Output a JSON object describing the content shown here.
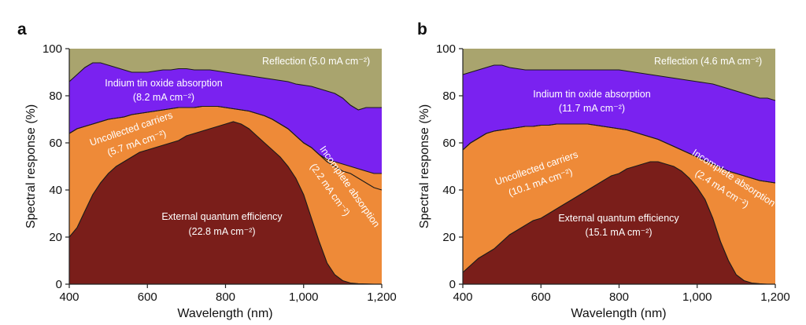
{
  "chart_data": [
    {
      "panel": "a",
      "type": "area",
      "xlabel": "Wavelength (nm)",
      "ylabel": "Spectral response (%)",
      "xlim": [
        400,
        1200
      ],
      "ylim": [
        0,
        100
      ],
      "xticks": [
        "400",
        "600",
        "800",
        "1,000",
        "1,200"
      ],
      "yticks": [
        "0",
        "20",
        "40",
        "60",
        "80",
        "100"
      ],
      "x": [
        400,
        420,
        440,
        460,
        480,
        500,
        520,
        540,
        560,
        580,
        600,
        620,
        640,
        660,
        680,
        700,
        720,
        740,
        760,
        780,
        800,
        820,
        840,
        860,
        880,
        900,
        920,
        940,
        960,
        980,
        1000,
        1020,
        1040,
        1060,
        1080,
        1100,
        1120,
        1140,
        1160,
        1180,
        1200
      ],
      "series": [
        {
          "name": "External quantum efficiency",
          "color": "#7a1e1a",
          "values": [
            20,
            24,
            31,
            38,
            43,
            47,
            50,
            52,
            54,
            56,
            57,
            58,
            59,
            60,
            61,
            63,
            64,
            65,
            66,
            67,
            68,
            69,
            68,
            66,
            63,
            60,
            57,
            54,
            50,
            45,
            38,
            28,
            18,
            9,
            4,
            1.5,
            0.5,
            0.2,
            0.1,
            0,
            0
          ]
        },
        {
          "name": "Uncollected carriers",
          "color": "#ee8a38",
          "values": [
            64,
            66,
            67,
            68,
            69,
            70,
            70.5,
            71,
            72,
            72.5,
            73,
            73.5,
            74,
            74.5,
            75,
            75,
            75,
            75.5,
            75.5,
            75.5,
            75,
            74.5,
            74,
            73.5,
            72.5,
            71.5,
            70,
            68,
            66,
            63,
            60,
            58,
            55,
            52,
            50,
            48,
            47,
            45,
            43,
            41,
            40
          ]
        },
        {
          "name": "Incomplete absorption",
          "color": "#ee8a38",
          "values": [
            64,
            66,
            67,
            68,
            69,
            70,
            70.5,
            71,
            72,
            72.5,
            73,
            73.5,
            74,
            74.5,
            75,
            75,
            75,
            75.5,
            75.5,
            75.5,
            75,
            74.5,
            74,
            73.5,
            72.5,
            71.5,
            70,
            68,
            66,
            63,
            60,
            58,
            55,
            53,
            52,
            51,
            50,
            49,
            48,
            47,
            47
          ]
        },
        {
          "name": "Indium tin oxide absorption",
          "color": "#7a22f0",
          "values": [
            86,
            89,
            92,
            94,
            94,
            93,
            92,
            91,
            90,
            90,
            90,
            90.5,
            91,
            91,
            91.5,
            91.5,
            91,
            91,
            91,
            90.5,
            90,
            89.5,
            89,
            88.5,
            88,
            87.5,
            87,
            86.5,
            86,
            85,
            84.5,
            84,
            83,
            82,
            81,
            79,
            76,
            74,
            75,
            75,
            75
          ]
        },
        {
          "name": "Reflection",
          "color": "#a9a46e",
          "values": [
            100,
            100,
            100,
            100,
            100,
            100,
            100,
            100,
            100,
            100,
            100,
            100,
            100,
            100,
            100,
            100,
            100,
            100,
            100,
            100,
            100,
            100,
            100,
            100,
            100,
            100,
            100,
            100,
            100,
            100,
            100,
            100,
            100,
            100,
            100,
            100,
            100,
            100,
            100,
            100,
            100
          ]
        }
      ],
      "labels": {
        "reflection": "Reflection (5.0 mA cm⁻²)",
        "ito_line1": "Indium tin oxide absorption",
        "ito_line2": "(8.2 mA cm⁻²)",
        "uncollected_line1": "Uncollected carriers",
        "uncollected_line2": "(5.7 mA cm⁻²)",
        "incomplete_line1": "Incomplete absorption",
        "incomplete_line2": "(2.2 mA cm⁻²)",
        "eqe_line1": "External quantum efficiency",
        "eqe_line2": "(22.8 mA cm⁻²)"
      }
    },
    {
      "panel": "b",
      "type": "area",
      "xlabel": "Wavelength (nm)",
      "ylabel": "Spectral response (%)",
      "xlim": [
        400,
        1200
      ],
      "ylim": [
        0,
        100
      ],
      "xticks": [
        "400",
        "600",
        "800",
        "1,000",
        "1,200"
      ],
      "yticks": [
        "0",
        "20",
        "40",
        "60",
        "80",
        "100"
      ],
      "x": [
        400,
        420,
        440,
        460,
        480,
        500,
        520,
        540,
        560,
        580,
        600,
        620,
        640,
        660,
        680,
        700,
        720,
        740,
        760,
        780,
        800,
        820,
        840,
        860,
        880,
        900,
        920,
        940,
        960,
        980,
        1000,
        1020,
        1040,
        1060,
        1080,
        1100,
        1120,
        1140,
        1160,
        1180,
        1200
      ],
      "series": [
        {
          "name": "External quantum efficiency",
          "color": "#7a1e1a",
          "values": [
            5,
            8,
            11,
            13,
            15,
            18,
            21,
            23,
            25,
            27,
            28,
            30,
            32,
            34,
            36,
            38,
            40,
            42,
            44,
            46,
            47,
            49,
            50,
            51,
            52,
            52,
            51,
            50,
            48,
            45,
            41,
            36,
            28,
            18,
            10,
            4,
            1.5,
            0.5,
            0.2,
            0,
            0
          ]
        },
        {
          "name": "Uncollected carriers",
          "color": "#ee8a38",
          "values": [
            57,
            60,
            62,
            64,
            65,
            65.5,
            66,
            66.5,
            67,
            67,
            67.5,
            67.5,
            68,
            68,
            68,
            68,
            68,
            67.5,
            67,
            66.5,
            66,
            65.5,
            64.5,
            63.5,
            62.5,
            61.5,
            60,
            58.5,
            57,
            55.5,
            54,
            52.5,
            51,
            49.5,
            48,
            47,
            46,
            45,
            44,
            43.5,
            43
          ]
        },
        {
          "name": "Incomplete absorption",
          "color": "#ee8a38",
          "values": [
            57,
            60,
            62,
            64,
            65,
            65.5,
            66,
            66.5,
            67,
            67,
            67.5,
            67.5,
            68,
            68,
            68,
            68,
            68,
            67.5,
            67,
            66.5,
            66,
            65.5,
            64.5,
            63.5,
            62.5,
            61.5,
            60,
            58.5,
            57,
            55.5,
            54,
            52.5,
            51,
            49.5,
            48,
            47,
            46,
            45,
            44,
            43.5,
            43
          ]
        },
        {
          "name": "Indium tin oxide absorption",
          "color": "#7a22f0",
          "values": [
            89,
            90,
            91,
            92,
            93,
            93,
            92,
            91.5,
            91,
            91,
            91,
            91,
            91,
            91,
            91,
            91,
            91,
            91,
            91,
            91,
            91,
            90.5,
            90,
            89.5,
            89,
            88.5,
            88,
            87.5,
            87,
            86.5,
            86,
            85.5,
            85,
            84,
            83,
            82,
            81,
            80,
            79,
            79,
            78
          ]
        },
        {
          "name": "Reflection",
          "color": "#a9a46e",
          "values": [
            100,
            100,
            100,
            100,
            100,
            100,
            100,
            100,
            100,
            100,
            100,
            100,
            100,
            100,
            100,
            100,
            100,
            100,
            100,
            100,
            100,
            100,
            100,
            100,
            100,
            100,
            100,
            100,
            100,
            100,
            100,
            100,
            100,
            100,
            100,
            100,
            100,
            100,
            100,
            100,
            100
          ]
        }
      ],
      "labels": {
        "reflection": "Reflection (4.6 mA cm⁻²)",
        "ito_line1": "Indium tin oxide absorption",
        "ito_line2": "(11.7 mA cm⁻²)",
        "uncollected_line1": "Uncollected carriers",
        "uncollected_line2": "(10.1 mA cm⁻²)",
        "incomplete_line1": "Incomplete absorption",
        "incomplete_line2": "(2.4 mA cm⁻²)",
        "eqe_line1": "External quantum efficiency",
        "eqe_line2": "(15.1 mA cm⁻²)"
      }
    }
  ],
  "colors": {
    "eqe": "#7a1e1a",
    "carriers": "#ee8a38",
    "ito": "#7a22f0",
    "reflection": "#a9a46e"
  }
}
